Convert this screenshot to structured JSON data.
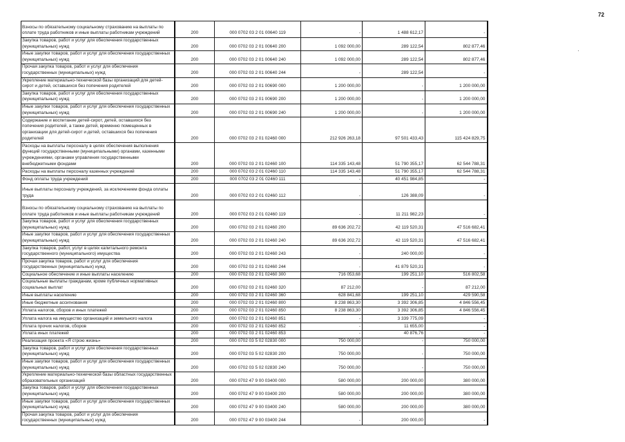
{
  "page_number": "72",
  "rows": [
    {
      "desc": "Взносы по обязательному социальному страхованию  на выплаты по оплате труда работников и иные выплаты работникам учреждений",
      "line": "200",
      "code": "000 0702 03 2 01 00640 119",
      "approved": "-",
      "executed": "1 488 612,17",
      "remaining": "-"
    },
    {
      "desc": "Закупка товаров, работ и услуг для обеспечения государственных (муниципальных) нужд",
      "line": "200",
      "code": "000 0702 03 2 01 00640 200",
      "approved": "1 092 000,00",
      "executed": "289 122,54",
      "remaining": "802 877,46"
    },
    {
      "desc": "Иные закупки товаров, работ и услуг для обеспечения государственных (муниципальных) нужд",
      "line": "200",
      "code": "000 0702 03 2 01 00640 240",
      "approved": "1 092 000,00",
      "executed": "289 122,54",
      "remaining": "802 877,46"
    },
    {
      "desc": "Прочая закупка товаров, работ и услуг для обеспечения государственных (муниципальных) нужд",
      "line": "200",
      "code": "000 0702 03 2 01 00640 244",
      "approved": "-",
      "executed": "289 122,54",
      "remaining": "-"
    },
    {
      "desc": "Укрепление материально-технической базы организаций для детей-сирот и детей, оставшихся без попечения родителей",
      "line": "200",
      "code": "000 0702 03 2 01 00690 000",
      "approved": "1 200 000,00",
      "executed": "-",
      "remaining": "1 200 000,00"
    },
    {
      "desc": "Закупка товаров, работ и услуг для обеспечения государственных (муниципальных) нужд",
      "line": "200",
      "code": "000 0702 03 2 01 00690 200",
      "approved": "1 200 000,00",
      "executed": "-",
      "remaining": "1 200 000,00"
    },
    {
      "desc": "Иные закупки товаров, работ и услуг для обеспечения государственных (муниципальных) нужд",
      "line": "200",
      "code": "000 0702 03 2 01 00690 240",
      "approved": "1 200 000,00",
      "executed": "-",
      "remaining": "1 200 000,00"
    },
    {
      "desc": "Содержание и воспитание детей-сирот, детей, оставшихся без попечения родителей, а также детей, временно помещенных в организации для детей-сирот и детей, оставшихся без попечения родителей",
      "line": "200",
      "code": "000 0702 03 2 01 02460 000",
      "approved": "212 926 263,18",
      "executed": "97 501 433,43",
      "remaining": "115 424 829,75"
    },
    {
      "desc": "Расходы на выплаты персоналу в целях обеспечения выполнения функций государственными (муниципальными) органами, казенными учреждениями, органами управления государственными внебюджетными фондами",
      "line": "200",
      "code": "000 0702 03 2 01 02460 100",
      "approved": "114 335 143,48",
      "executed": "51 790 355,17",
      "remaining": "62 544 788,31"
    },
    {
      "desc": "Расходы на выплаты персоналу казенных учреждений",
      "line": "200",
      "code": "000 0702 03 2 01 02460 110",
      "approved": "114 335 143,48",
      "executed": "51 790 355,17",
      "remaining": "62 544 788,31"
    },
    {
      "desc": "Фонд оплаты труда учреждений",
      "line": "200",
      "code": "000 0702 03 2 01 02460 111",
      "approved": "-",
      "executed": "40 451 984,85",
      "remaining": "-"
    },
    {
      "desc": "Иные выплаты персоналу учреждений, за исключением фонда оплаты труда",
      "line": "200",
      "code": "000 0702 03 2 01 02460 112",
      "approved": "-",
      "executed": "126 388,09",
      "remaining": "-"
    },
    {
      "desc": "Взносы по обязательному социальному страхованию  на выплаты по оплате труда работников и иные выплаты работникам учреждений",
      "line": "200",
      "code": "000 0702 03 2 01 02460 119",
      "approved": "-",
      "executed": "11 211 982,23",
      "remaining": "-"
    },
    {
      "desc": "Закупка товаров, работ и услуг для обеспечения государственных (муниципальных) нужд",
      "line": "200",
      "code": "000 0702 03 2 01 02460 200",
      "approved": "89 636 202,72",
      "executed": "42 119 520,31",
      "remaining": "47 516 682,41"
    },
    {
      "desc": "Иные закупки товаров, работ и услуг для обеспечения государственных (муниципальных) нужд",
      "line": "200",
      "code": "000 0702 03 2 01 02460 240",
      "approved": "89 636 202,72",
      "executed": "42 119 520,31",
      "remaining": "47 516 682,41"
    },
    {
      "desc": "Закупка товаров, работ, услуг в целях капитального ремонта государственного (муниципального) имущества",
      "line": "200",
      "code": "000 0702 03 2 01 02460 243",
      "approved": "-",
      "executed": "240 000,00",
      "remaining": "-"
    },
    {
      "desc": "Прочая закупка товаров, работ и услуг для обеспечения государственных (муниципальных) нужд",
      "line": "200",
      "code": "000 0702 03 2 01 02460 244",
      "approved": "-",
      "executed": "41 879 520,31",
      "remaining": "-"
    },
    {
      "desc": "Социальное обеспечение и иные выплаты населению",
      "line": "200",
      "code": "000 0702 03 2 01 02460 300",
      "approved": "716 053,68",
      "executed": "199 251,10",
      "remaining": "516 802,58"
    },
    {
      "desc": "Социальные выплаты гражданам, кроме публичных нормативных социальных выплат",
      "line": "200",
      "code": "000 0702 03 2 01 02460 320",
      "approved": "87 212,00",
      "executed": "-",
      "remaining": "87 212,00"
    },
    {
      "desc": "Иные выплаты населению",
      "line": "200",
      "code": "000 0702 03 2 01 02460 360",
      "approved": "628 841,68",
      "executed": "199 251,10",
      "remaining": "429 590,58"
    },
    {
      "desc": "Иные бюджетные ассигнования",
      "line": "200",
      "code": "000 0702 03 2 01 02460 800",
      "approved": "8 238 863,30",
      "executed": "3 392 306,85",
      "remaining": "4 846 556,45"
    },
    {
      "desc": "Уплата налогов, сборов и иных платежей",
      "line": "200",
      "code": "000 0702 03 2 01 02460 850",
      "approved": "8 238 863,30",
      "executed": "3 392 306,85",
      "remaining": "4 846 556,45"
    },
    {
      "desc": "Уплата налога на имущество организаций и земельного налога",
      "line": "200",
      "code": "000 0702 03 2 01 02460 851",
      "approved": "-",
      "executed": "3 339 775,09",
      "remaining": "-"
    },
    {
      "desc": "Уплата прочих налогов, сборов",
      "line": "200",
      "code": "000 0702 03 2 01 02460 852",
      "approved": "-",
      "executed": "11 655,00",
      "remaining": "-"
    },
    {
      "desc": "Уплата иных платежей",
      "line": "200",
      "code": "000 0702 03 2 01 02460 853",
      "approved": "-",
      "executed": "40 876,76",
      "remaining": "-"
    },
    {
      "desc": "Реализация проекта «Я строю жизнь»",
      "line": "200",
      "code": "000 0702 03 5 02 02830 000",
      "approved": "750 000,00",
      "executed": "-",
      "remaining": "750 000,00"
    },
    {
      "desc": "Закупка товаров, работ и услуг для обеспечения государственных (муниципальных) нужд",
      "line": "200",
      "code": "000 0702 03 5 02 02830 200",
      "approved": "750 000,00",
      "executed": "-",
      "remaining": "750 000,00"
    },
    {
      "desc": "Иные закупки товаров, работ и услуг для обеспечения государственных (муниципальных) нужд",
      "line": "200",
      "code": "000 0702 03 5 02 02830 240",
      "approved": "750 000,00",
      "executed": "-",
      "remaining": "750 000,00"
    },
    {
      "desc": "Укрепление материально-технической базы областных государственных образовательных организаций",
      "line": "200",
      "code": "000 0702 47 9 00 03400 000",
      "approved": "580 000,00",
      "executed": "200 000,00",
      "remaining": "380 000,00"
    },
    {
      "desc": "Закупка товаров, работ и услуг для обеспечения государственных (муниципальных) нужд",
      "line": "200",
      "code": "000 0702 47 9 00 03400 200",
      "approved": "580 000,00",
      "executed": "200 000,00",
      "remaining": "380 000,00"
    },
    {
      "desc": "Иные закупки товаров, работ и услуг для обеспечения государственных (муниципальных) нужд",
      "line": "200",
      "code": "000 0702 47 9 00 03400 240",
      "approved": "580 000,00",
      "executed": "200 000,00",
      "remaining": "380 000,00"
    },
    {
      "desc": "Прочая закупка товаров, работ и услуг для обеспечения государственных (муниципальных) нужд",
      "line": "200",
      "code": "000 0702 47 9 00 03400 244",
      "approved": "-",
      "executed": "200 000,00",
      "remaining": "-"
    }
  ]
}
